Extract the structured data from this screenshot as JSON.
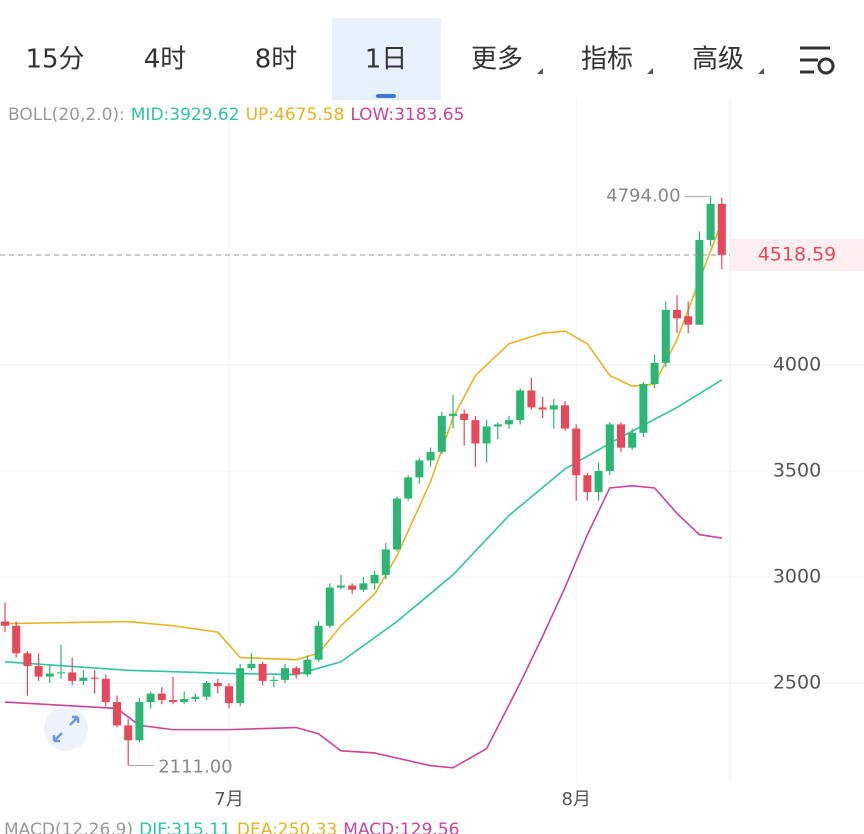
{
  "tabs": [
    "15分",
    "4时",
    "8时",
    "1日",
    "更多",
    "指标",
    "高级"
  ],
  "selected_tab": 3,
  "chart_data": {
    "type": "candlestick",
    "indicator_label": "BOLL(20,2.0):",
    "categories": [
      null,
      null,
      null,
      null,
      null,
      null,
      null,
      null,
      null,
      null,
      null,
      null,
      null,
      null,
      null,
      null,
      null,
      null,
      null,
      null,
      "7月",
      null,
      null,
      null,
      null,
      null,
      null,
      null,
      null,
      null,
      null,
      null,
      null,
      null,
      null,
      null,
      null,
      null,
      null,
      null,
      null,
      null,
      null,
      null,
      null,
      null,
      null,
      null,
      null,
      null,
      null,
      "8月",
      null,
      null,
      null,
      null,
      null,
      null,
      null,
      null,
      null,
      null,
      null,
      null,
      null
    ],
    "open": [
      2790,
      2770,
      2640,
      2580,
      2530,
      2545,
      2550,
      2510,
      2525,
      2520,
      2410,
      2300,
      2230,
      2410,
      2450,
      2420,
      2410,
      2425,
      2435,
      2500,
      2485,
      2405,
      2570,
      2590,
      2510,
      2515,
      2570,
      2540,
      2610,
      2770,
      2950,
      2960,
      2940,
      2970,
      3010,
      3130,
      3370,
      3470,
      3550,
      3590,
      3760,
      3770,
      3740,
      3630,
      3710,
      3720,
      3740,
      3880,
      3800,
      3790,
      3810,
      3700,
      3480,
      3400,
      3500,
      3720,
      3610,
      3680,
      3910,
      4010,
      4260,
      4230,
      4190,
      4590,
      4760
    ],
    "high": [
      2880,
      2790,
      2650,
      2640,
      2590,
      2680,
      2620,
      2560,
      2560,
      2540,
      2440,
      2330,
      2430,
      2460,
      2480,
      2530,
      2460,
      2450,
      2510,
      2520,
      2500,
      2590,
      2640,
      2600,
      2530,
      2590,
      2580,
      2630,
      2790,
      2970,
      3010,
      2970,
      3000,
      3030,
      3160,
      3380,
      3480,
      3560,
      3610,
      3780,
      3860,
      3790,
      3760,
      3740,
      3730,
      3760,
      3890,
      3940,
      3850,
      3840,
      3830,
      3720,
      3490,
      3540,
      3730,
      3730,
      3700,
      3920,
      4050,
      4300,
      4330,
      4300,
      4630,
      4794,
      4790
    ],
    "low": [
      2740,
      2620,
      2440,
      2510,
      2500,
      2520,
      2490,
      2490,
      2450,
      2390,
      2290,
      2111,
      2220,
      2380,
      2400,
      2400,
      2400,
      2410,
      2420,
      2450,
      2380,
      2390,
      2560,
      2490,
      2480,
      2500,
      2520,
      2530,
      2600,
      2760,
      2940,
      2920,
      2930,
      2940,
      2990,
      3120,
      3360,
      3440,
      3520,
      3580,
      3700,
      3620,
      3520,
      3540,
      3650,
      3700,
      3720,
      3790,
      3750,
      3700,
      3690,
      3360,
      3360,
      3360,
      3480,
      3590,
      3600,
      3660,
      3890,
      3990,
      4150,
      4150,
      4190,
      4560,
      4450
    ],
    "close": [
      2770,
      2640,
      2580,
      2530,
      2545,
      2550,
      2510,
      2525,
      2520,
      2410,
      2300,
      2230,
      2410,
      2450,
      2420,
      2410,
      2425,
      2435,
      2500,
      2485,
      2405,
      2570,
      2590,
      2510,
      2515,
      2570,
      2540,
      2610,
      2770,
      2950,
      2960,
      2940,
      2970,
      3010,
      3130,
      3370,
      3470,
      3550,
      3590,
      3760,
      3770,
      3740,
      3630,
      3710,
      3720,
      3740,
      3880,
      3800,
      3790,
      3810,
      3700,
      3480,
      3400,
      3500,
      3720,
      3610,
      3680,
      3910,
      4010,
      4260,
      4220,
      4190,
      4590,
      4760,
      4518.59
    ],
    "up_color": "#2bb673",
    "down_color": "#e8485b",
    "bands": [
      {
        "name": "MID",
        "label": "MID:3929.62",
        "color": "#2ec4a5",
        "x": [
          0,
          11,
          20,
          26,
          30,
          35,
          40,
          45,
          50,
          55,
          60,
          64
        ],
        "values": [
          2600,
          2560,
          2545,
          2540,
          2600,
          2790,
          3010,
          3290,
          3510,
          3660,
          3800,
          3929.62
        ]
      },
      {
        "name": "UP",
        "label": "UP:4675.58",
        "color": "#e6b422",
        "x": [
          0,
          11,
          15,
          19,
          21,
          26,
          28,
          30,
          33,
          35,
          38,
          40,
          42,
          45,
          48,
          50,
          52,
          54,
          56,
          58,
          60,
          62,
          64
        ],
        "values": [
          2780,
          2790,
          2770,
          2740,
          2620,
          2610,
          2640,
          2770,
          2920,
          3100,
          3450,
          3750,
          3950,
          4100,
          4150,
          4160,
          4100,
          3950,
          3900,
          3910,
          4120,
          4400,
          4675.58
        ]
      },
      {
        "name": "LOW",
        "label": "LOW:3183.65",
        "color": "#c9459a",
        "x": [
          0,
          10,
          12,
          15,
          20,
          26,
          28,
          30,
          33,
          38,
          40,
          43,
          46,
          48,
          50,
          52,
          54,
          56,
          58,
          60,
          62,
          64
        ],
        "values": [
          2410,
          2380,
          2300,
          2280,
          2280,
          2290,
          2260,
          2180,
          2170,
          2110,
          2100,
          2190,
          2500,
          2720,
          2950,
          3200,
          3420,
          3430,
          3420,
          3300,
          3200,
          3183.65
        ]
      }
    ],
    "high_mark": {
      "value": 4794,
      "label": "4794.00"
    },
    "low_mark": {
      "value": 2111,
      "label": "2111.00"
    },
    "last_price": {
      "value": 4518.59,
      "label": "4518.59"
    },
    "ylim": [
      2033,
      5250
    ],
    "yticks": [
      2500,
      3000,
      3500,
      4000
    ],
    "grid": true,
    "macd_legend": [
      "MACD(12,26,9)",
      "DIF:315.11",
      "DEA:250.33",
      "MACD:129.56"
    ]
  }
}
